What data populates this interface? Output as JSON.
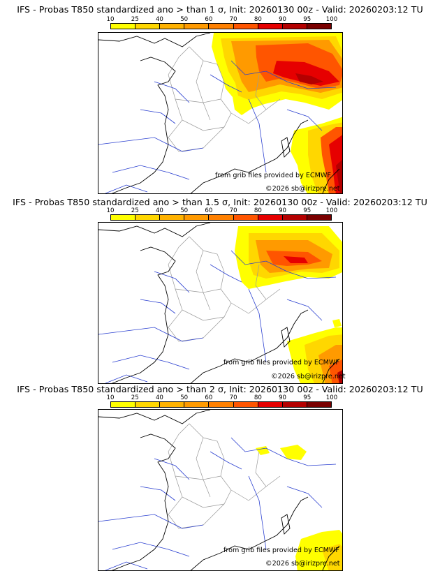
{
  "scale": {
    "ticks": [
      "10",
      "25",
      "40",
      "50",
      "60",
      "70",
      "80",
      "90",
      "95",
      "100"
    ],
    "colors": [
      "#ffff00",
      "#ffd700",
      "#ffb200",
      "#ff9a00",
      "#ff8000",
      "#ff5500",
      "#e60000",
      "#b40000",
      "#7a0000"
    ]
  },
  "panels": [
    {
      "title": "IFS - Probas T850  standardized ano > than 1 σ, Init: 20260130 00z - Valid: 20260203:12 TU",
      "credit1": "from grib files provided by ECMWF",
      "credit2": "©2026 sb@irizpre.net"
    },
    {
      "title": "IFS - Probas T850  standardized ano > than 1.5 σ, Init: 20260130 00z - Valid: 20260203:12 TU",
      "credit1": "from grib files provided by ECMWF",
      "credit2": "©2026 sb@irizpre.net"
    },
    {
      "title": "IFS - Probas T850  standardized ano > than 2 σ, Init: 20260130 00z - Valid: 20260203:12 TU",
      "credit1": "from grib files provided by ECMWF",
      "credit2": "©2026 sb@irizpre.net"
    }
  ]
}
